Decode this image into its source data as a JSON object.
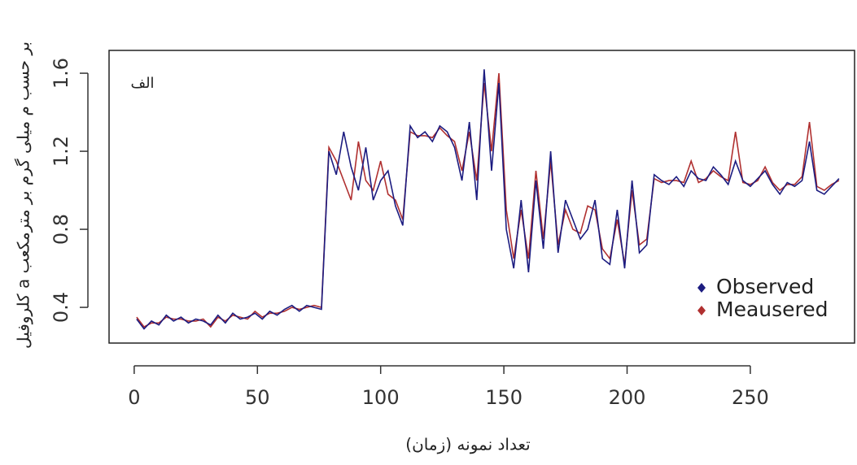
{
  "chart_data": {
    "type": "line",
    "ylabel": "کلروفیل a بر حسب م میلی گرم بر مترمکعب",
    "xlabel": "تعداد نمونه (زمان)",
    "annotation": "الف",
    "x": [
      1,
      4,
      7,
      10,
      13,
      16,
      19,
      22,
      25,
      28,
      31,
      34,
      37,
      40,
      43,
      46,
      49,
      52,
      55,
      58,
      61,
      64,
      67,
      70,
      73,
      76,
      79,
      82,
      85,
      88,
      91,
      94,
      97,
      100,
      103,
      106,
      109,
      112,
      115,
      118,
      121,
      124,
      127,
      130,
      133,
      136,
      139,
      142,
      145,
      148,
      151,
      154,
      157,
      160,
      163,
      166,
      169,
      172,
      175,
      178,
      181,
      184,
      187,
      190,
      193,
      196,
      199,
      202,
      205,
      208,
      211,
      214,
      217,
      220,
      223,
      226,
      229,
      232,
      235,
      238,
      241,
      244,
      247,
      250,
      253,
      256,
      259,
      262,
      265,
      268,
      271,
      274,
      277,
      280,
      283,
      286
    ],
    "series": [
      {
        "name": "Observed",
        "color": "#1c1c80",
        "values": [
          0.34,
          0.29,
          0.33,
          0.31,
          0.36,
          0.33,
          0.35,
          0.32,
          0.34,
          0.33,
          0.31,
          0.36,
          0.32,
          0.37,
          0.34,
          0.35,
          0.37,
          0.34,
          0.38,
          0.36,
          0.39,
          0.41,
          0.38,
          0.41,
          0.4,
          0.39,
          1.2,
          1.08,
          1.3,
          1.12,
          1.0,
          1.22,
          0.95,
          1.05,
          1.1,
          0.92,
          0.82,
          1.33,
          1.27,
          1.3,
          1.25,
          1.33,
          1.3,
          1.22,
          1.05,
          1.35,
          0.95,
          1.62,
          1.1,
          1.55,
          0.8,
          0.6,
          0.95,
          0.58,
          1.05,
          0.7,
          1.2,
          0.68,
          0.95,
          0.85,
          0.75,
          0.8,
          0.95,
          0.65,
          0.62,
          0.9,
          0.6,
          1.05,
          0.68,
          0.72,
          1.08,
          1.05,
          1.03,
          1.07,
          1.02,
          1.1,
          1.06,
          1.05,
          1.12,
          1.08,
          1.03,
          1.15,
          1.05,
          1.02,
          1.06,
          1.1,
          1.03,
          0.98,
          1.04,
          1.02,
          1.05,
          1.25,
          1.0,
          0.98,
          1.02,
          1.06
        ]
      },
      {
        "name": "Meausered",
        "color": "#b03030",
        "values": [
          0.35,
          0.3,
          0.32,
          0.32,
          0.35,
          0.34,
          0.34,
          0.33,
          0.33,
          0.34,
          0.3,
          0.35,
          0.33,
          0.36,
          0.35,
          0.34,
          0.38,
          0.35,
          0.37,
          0.37,
          0.38,
          0.4,
          0.39,
          0.4,
          0.41,
          0.4,
          1.22,
          1.15,
          1.05,
          0.95,
          1.25,
          1.05,
          1.0,
          1.15,
          0.98,
          0.95,
          0.85,
          1.3,
          1.28,
          1.28,
          1.27,
          1.32,
          1.28,
          1.25,
          1.1,
          1.3,
          1.05,
          1.55,
          1.2,
          1.6,
          0.9,
          0.65,
          0.9,
          0.65,
          1.1,
          0.75,
          1.15,
          0.72,
          0.9,
          0.8,
          0.78,
          0.92,
          0.9,
          0.7,
          0.65,
          0.85,
          0.62,
          1.0,
          0.72,
          0.75,
          1.06,
          1.04,
          1.05,
          1.05,
          1.04,
          1.15,
          1.04,
          1.06,
          1.1,
          1.07,
          1.05,
          1.3,
          1.04,
          1.03,
          1.05,
          1.12,
          1.04,
          1.0,
          1.03,
          1.03,
          1.07,
          1.35,
          1.02,
          1.0,
          1.03,
          1.05
        ]
      }
    ],
    "xlim": [
      -10.2,
      292.3
    ],
    "ylim": [
      0.217,
      1.717
    ],
    "xticks": [
      0,
      50,
      100,
      150,
      200,
      250
    ],
    "yticks": [
      0.4,
      0.8,
      1.2,
      1.6
    ],
    "legend": "bottom-right"
  }
}
